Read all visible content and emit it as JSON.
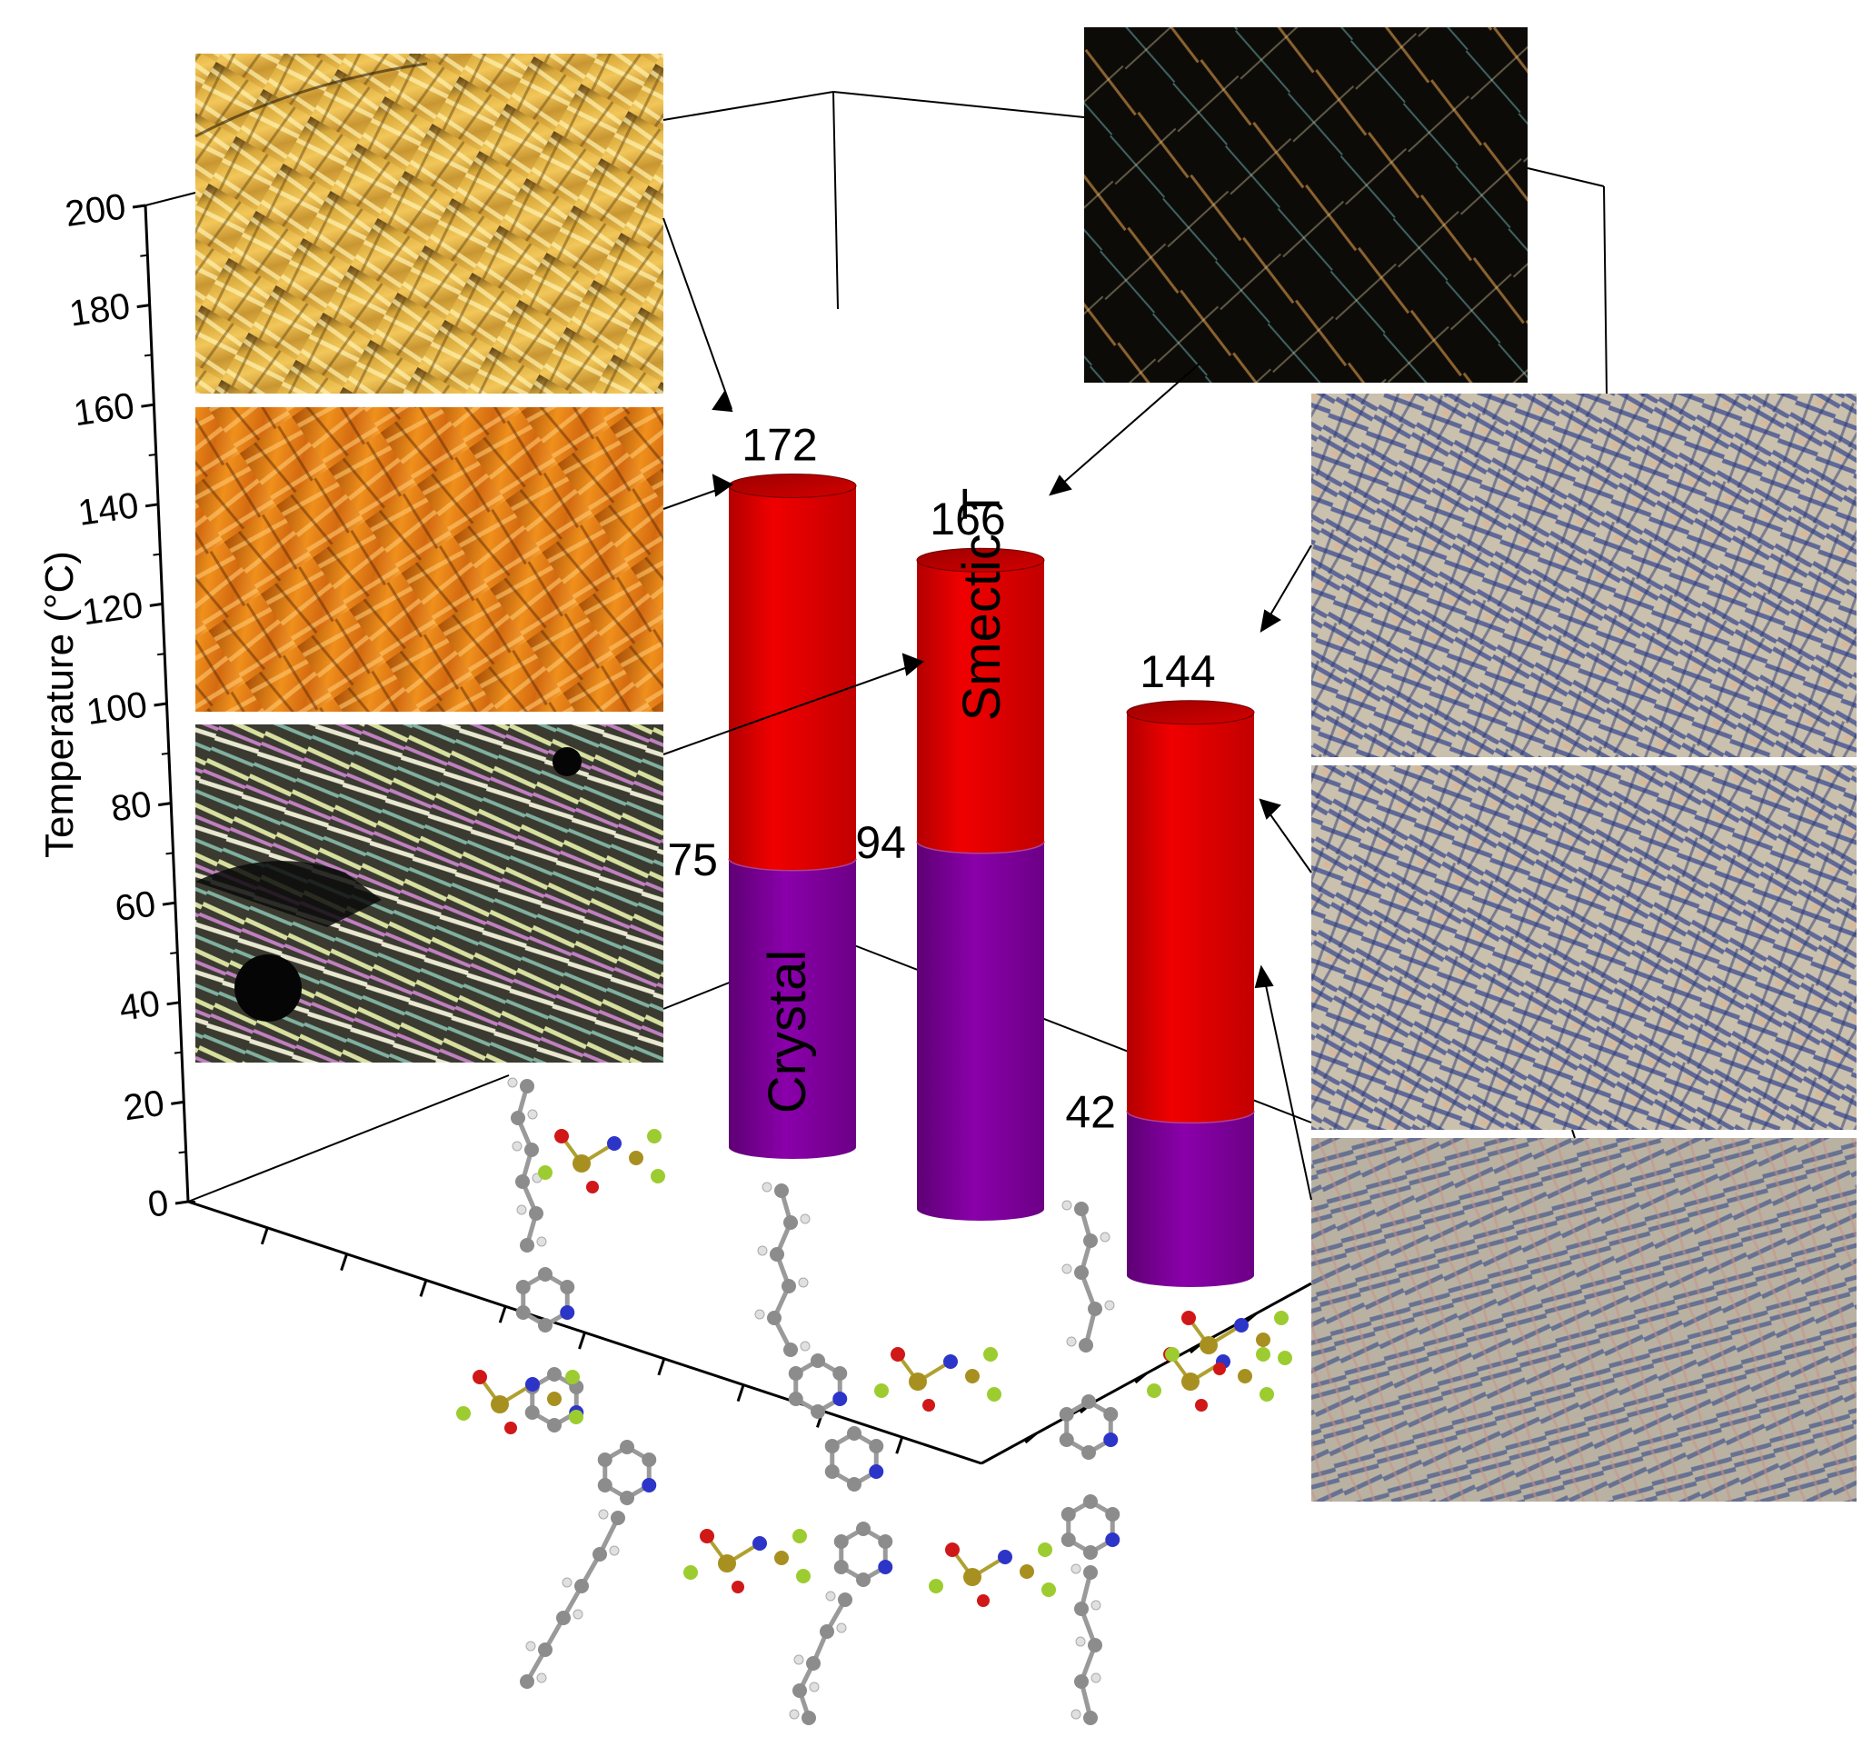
{
  "chart_data": {
    "type": "bar",
    "style": "3d-cylinder-stacked",
    "title": "",
    "xlabel": "",
    "ylabel": "Temperature (°C)",
    "ylim": [
      0,
      200
    ],
    "yticks": [
      0,
      20,
      40,
      60,
      80,
      100,
      120,
      140,
      160,
      180,
      200
    ],
    "grid": false,
    "categories": [
      "",
      "",
      ""
    ],
    "series": [
      {
        "name": "Crystal",
        "values": [
          75,
          94,
          42
        ],
        "color": "#7a0097"
      },
      {
        "name": "Smectic T",
        "values": [
          97,
          72,
          102
        ],
        "color": "#dd0000"
      }
    ],
    "transition_labels": {
      "crystal_to_smectic": [
        "75",
        "94",
        "42"
      ],
      "clearing": [
        "172",
        "166",
        "144"
      ]
    },
    "annotations": [
      "Crystal",
      "Smectic T"
    ]
  },
  "images": {
    "left_micrographs": [
      "golden-needle-texture",
      "orange-needle-texture",
      "iridescent-crystal-texture"
    ],
    "top_right_micrograph": "dark-iridescent-texture",
    "right_micrographs": [
      "blue-cream-mosaic-texture",
      "blue-cream-mosaic-texture",
      "blue-pink-mosaic-texture"
    ],
    "molecules": [
      "imidazolium-dication-triflimide",
      "bis-imidazolium-dication-triflimide",
      "bipyridinium-dication-triflimide"
    ]
  },
  "colors": {
    "crystal": "#7a0097",
    "smectic": "#dd0000",
    "axis": "#000000"
  }
}
